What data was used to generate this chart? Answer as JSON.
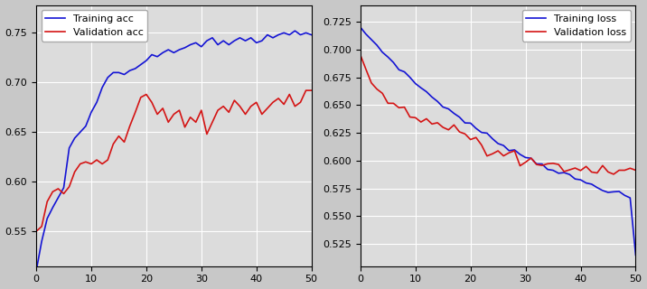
{
  "fig_width": 7.16,
  "fig_height": 3.2,
  "dpi": 100,
  "bg_color": "#dcdcdc",
  "blue_color": "#1414d4",
  "red_color": "#d41414",
  "acc_legend": [
    "Training acc",
    "Validation acc"
  ],
  "loss_legend": [
    "Training loss",
    "Validation loss"
  ],
  "xlim": [
    0,
    50
  ],
  "acc_ylim": [
    0.515,
    0.778
  ],
  "acc_yticks": [
    0.55,
    0.6,
    0.65,
    0.7,
    0.75
  ],
  "loss_ylim": [
    0.505,
    0.74
  ],
  "loss_yticks": [
    0.525,
    0.55,
    0.575,
    0.6,
    0.625,
    0.65,
    0.675,
    0.7,
    0.725
  ],
  "xticks": [
    0,
    10,
    20,
    30,
    40,
    50
  ]
}
